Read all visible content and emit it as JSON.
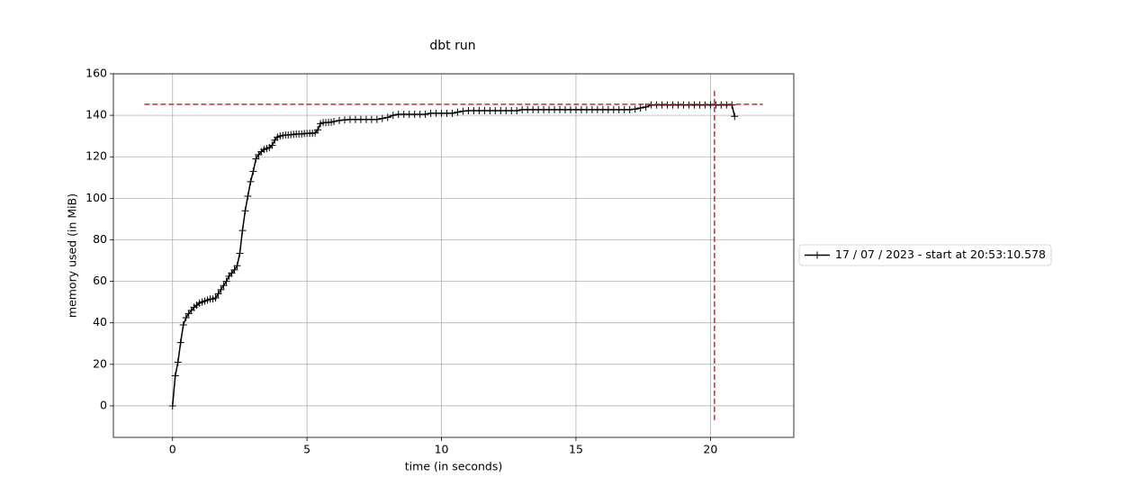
{
  "chart_data": {
    "type": "line",
    "title": "dbt run",
    "xlabel": "time (in seconds)",
    "ylabel": "memory used (in MiB)",
    "xlim": [
      -2.2,
      23.1
    ],
    "ylim": [
      -15.2,
      160
    ],
    "xticks": [
      0,
      5,
      10,
      15,
      20
    ],
    "yticks": [
      0,
      20,
      40,
      60,
      80,
      100,
      120,
      140,
      160
    ],
    "grid": true,
    "legend": "right",
    "series": [
      {
        "name": "17 / 07 / 2023 - start at 20:53:10.578",
        "color": "#000000",
        "marker": "+",
        "x": [
          0,
          0.1,
          0.2,
          0.3,
          0.4,
          0.5,
          0.6,
          0.7,
          0.8,
          0.9,
          1.0,
          1.1,
          1.2,
          1.3,
          1.4,
          1.5,
          1.6,
          1.7,
          1.8,
          1.9,
          2.0,
          2.1,
          2.2,
          2.3,
          2.4,
          2.5,
          2.6,
          2.7,
          2.8,
          2.9,
          3.0,
          3.1,
          3.2,
          3.3,
          3.4,
          3.5,
          3.6,
          3.7,
          3.8,
          3.9,
          4.0,
          4.1,
          4.2,
          4.3,
          4.4,
          4.5,
          4.6,
          4.7,
          4.8,
          4.9,
          5.0,
          5.1,
          5.2,
          5.3,
          5.4,
          5.5,
          5.6,
          5.7,
          5.8,
          5.9,
          6.0,
          6.2,
          6.4,
          6.6,
          6.8,
          7.0,
          7.2,
          7.4,
          7.6,
          7.8,
          8.0,
          8.2,
          8.4,
          8.6,
          8.8,
          9.0,
          9.2,
          9.4,
          9.6,
          9.8,
          10.0,
          10.2,
          10.4,
          10.6,
          10.8,
          11.0,
          11.2,
          11.4,
          11.6,
          11.8,
          12.0,
          12.2,
          12.4,
          12.6,
          12.8,
          13.0,
          13.2,
          13.4,
          13.6,
          13.8,
          14.0,
          14.2,
          14.4,
          14.6,
          14.8,
          15.0,
          15.2,
          15.4,
          15.6,
          15.8,
          16.0,
          16.2,
          16.4,
          16.6,
          16.8,
          17.0,
          17.2,
          17.4,
          17.6,
          17.8,
          18.0,
          18.2,
          18.4,
          18.6,
          18.8,
          19.0,
          19.2,
          19.4,
          19.6,
          19.8,
          20.0,
          20.2,
          20.4,
          20.6,
          20.8,
          20.9
        ],
        "values": [
          0,
          14.5,
          21,
          30.5,
          39,
          42.5,
          44.5,
          46,
          47.5,
          48.5,
          49.5,
          50,
          50.5,
          51,
          51.5,
          51.5,
          52,
          54,
          56,
          58,
          60,
          62.5,
          64,
          65.5,
          67.5,
          73.5,
          84.5,
          94,
          101,
          108,
          113,
          119,
          121,
          122.5,
          123.5,
          124,
          124.5,
          125.5,
          128,
          129.5,
          130,
          130.3,
          130.5,
          130.5,
          130.7,
          130.8,
          131,
          131,
          131,
          131.2,
          131.3,
          131.3,
          131.4,
          131.5,
          133,
          136,
          136.5,
          136.5,
          136.6,
          136.7,
          137,
          137.5,
          137.8,
          138,
          138,
          138,
          138,
          138,
          138,
          138.5,
          139,
          140,
          140.5,
          140.5,
          140.5,
          140.5,
          140.5,
          140.5,
          141,
          141,
          141,
          141,
          141,
          141.5,
          142,
          142.2,
          142.2,
          142.2,
          142.2,
          142.2,
          142.2,
          142.2,
          142.2,
          142.2,
          142.2,
          142.7,
          142.7,
          142.7,
          142.7,
          142.7,
          142.7,
          142.7,
          142.7,
          142.7,
          142.7,
          142.7,
          142.7,
          142.7,
          142.7,
          142.7,
          142.7,
          142.7,
          142.7,
          142.7,
          142.7,
          142.7,
          143,
          143.5,
          144,
          145,
          145,
          145,
          145,
          145,
          145,
          145,
          145,
          145,
          145,
          145,
          145,
          145,
          145,
          145,
          145,
          139.5
        ]
      }
    ],
    "hline": {
      "y": 145.3,
      "x": [
        -1.05,
        21.95
      ],
      "color": "#d62728"
    },
    "vline": {
      "x": 20.15,
      "y": [
        -6.9,
        152.6
      ],
      "color": "#d62728"
    }
  }
}
